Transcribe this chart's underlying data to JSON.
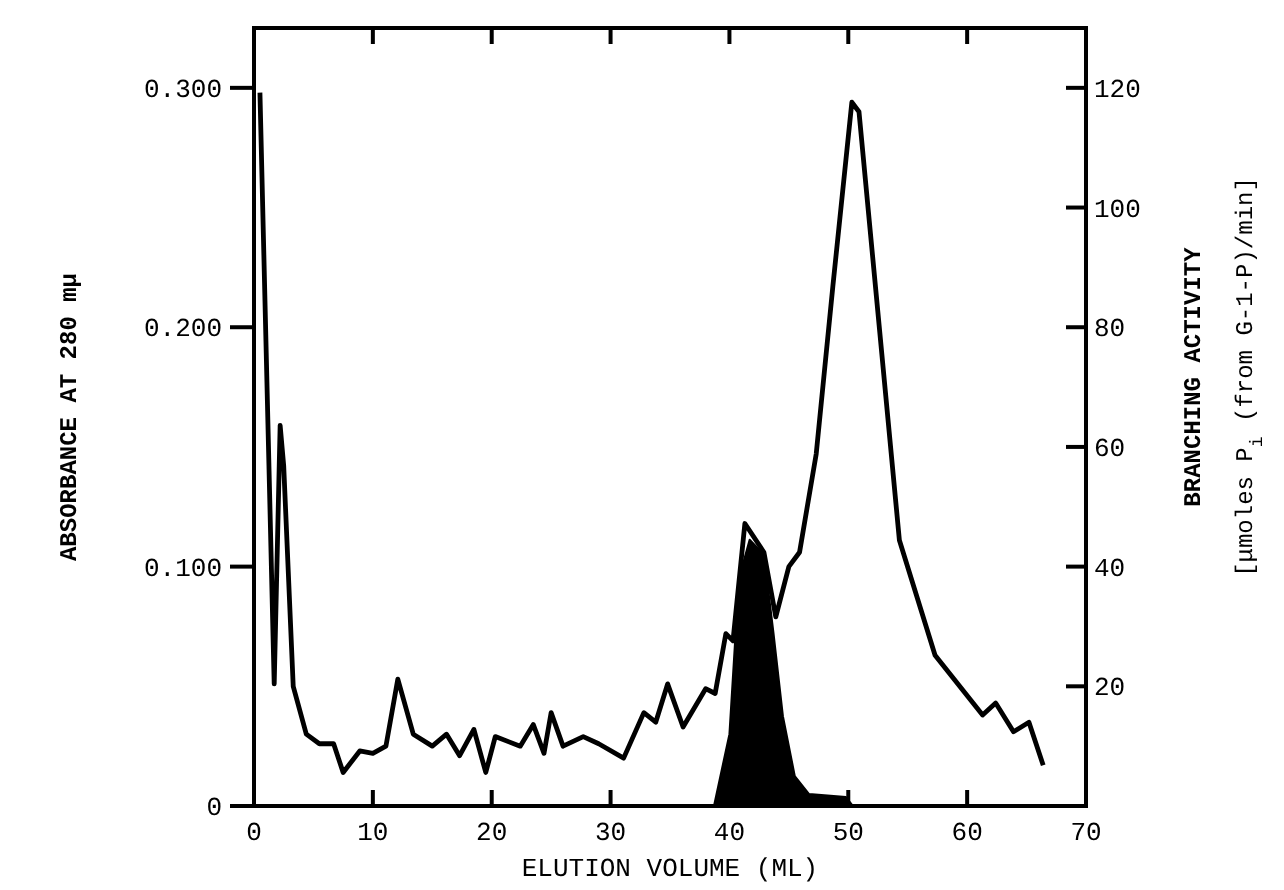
{
  "chart_data": {
    "type": "line",
    "xlabel": "ELUTION VOLUME (ML)",
    "ylabel": "ABSORBANCE AT 280 mμ",
    "y2label": "BRANCHING ACTIVITY\n[μmoles P$_{i}$ (from G-1-P)/min]",
    "xlim": [
      0,
      70
    ],
    "xticks": [
      0,
      10,
      20,
      30,
      40,
      50,
      60,
      70
    ],
    "ylim": [
      0,
      0.325
    ],
    "yticks": [
      0,
      {
        "value": 0.1,
        "label": "0.100"
      },
      {
        "value": 0.2,
        "label": "0.200"
      },
      {
        "value": 0.3,
        "label": "0.300"
      }
    ],
    "y2lim": [
      0,
      130
    ],
    "y2ticks": [
      20,
      40,
      60,
      80,
      100,
      120
    ],
    "grid": false,
    "marker": "none",
    "line_style": "solid",
    "series": [
      {
        "axis": "y",
        "color": "#000000",
        "x": [
          0.5,
          1.7,
          2.2,
          2.5,
          3.3,
          4.4,
          5.5,
          6.7,
          7.5,
          8.9,
          10,
          11.1,
          12.1,
          13.4,
          15,
          16.2,
          17.3,
          18.5,
          19.5,
          20.3,
          22.4,
          23.5,
          24.4,
          25,
          26,
          27.7,
          29,
          31.1,
          32.8,
          33.8,
          34.8,
          36.1,
          38,
          38.8,
          39.7,
          40.3,
          41.3,
          42.9,
          43.9,
          45,
          45.9,
          47.3,
          48.7,
          50.3,
          50.9,
          54.3,
          57.3,
          61.3,
          62.4,
          63.9,
          65.2,
          66.4
        ],
        "values": [
          0.298,
          0.051,
          0.159,
          0.142,
          0.05,
          0.03,
          0.026,
          0.026,
          0.014,
          0.023,
          0.022,
          0.025,
          0.053,
          0.03,
          0.025,
          0.03,
          0.021,
          0.032,
          0.014,
          0.029,
          0.025,
          0.034,
          0.022,
          0.039,
          0.025,
          0.029,
          0.026,
          0.02,
          0.039,
          0.035,
          0.051,
          0.033,
          0.049,
          0.047,
          0.072,
          0.069,
          0.118,
          0.106,
          0.079,
          0.1,
          0.106,
          0.147,
          0.217,
          0.294,
          0.29,
          0.111,
          0.063,
          0.038,
          0.043,
          0.031,
          0.035,
          0.017
        ]
      },
      {
        "type": "area",
        "axis": "y2",
        "color": "#000000",
        "x": [
          38.7,
          40,
          40.8,
          41.7,
          42.9,
          43.7,
          44.5,
          45.5,
          46.7,
          49.8,
          50.4
        ],
        "values": [
          0,
          12,
          38,
          44.5,
          42,
          29,
          15,
          5,
          2,
          1.5,
          0
        ]
      }
    ]
  }
}
